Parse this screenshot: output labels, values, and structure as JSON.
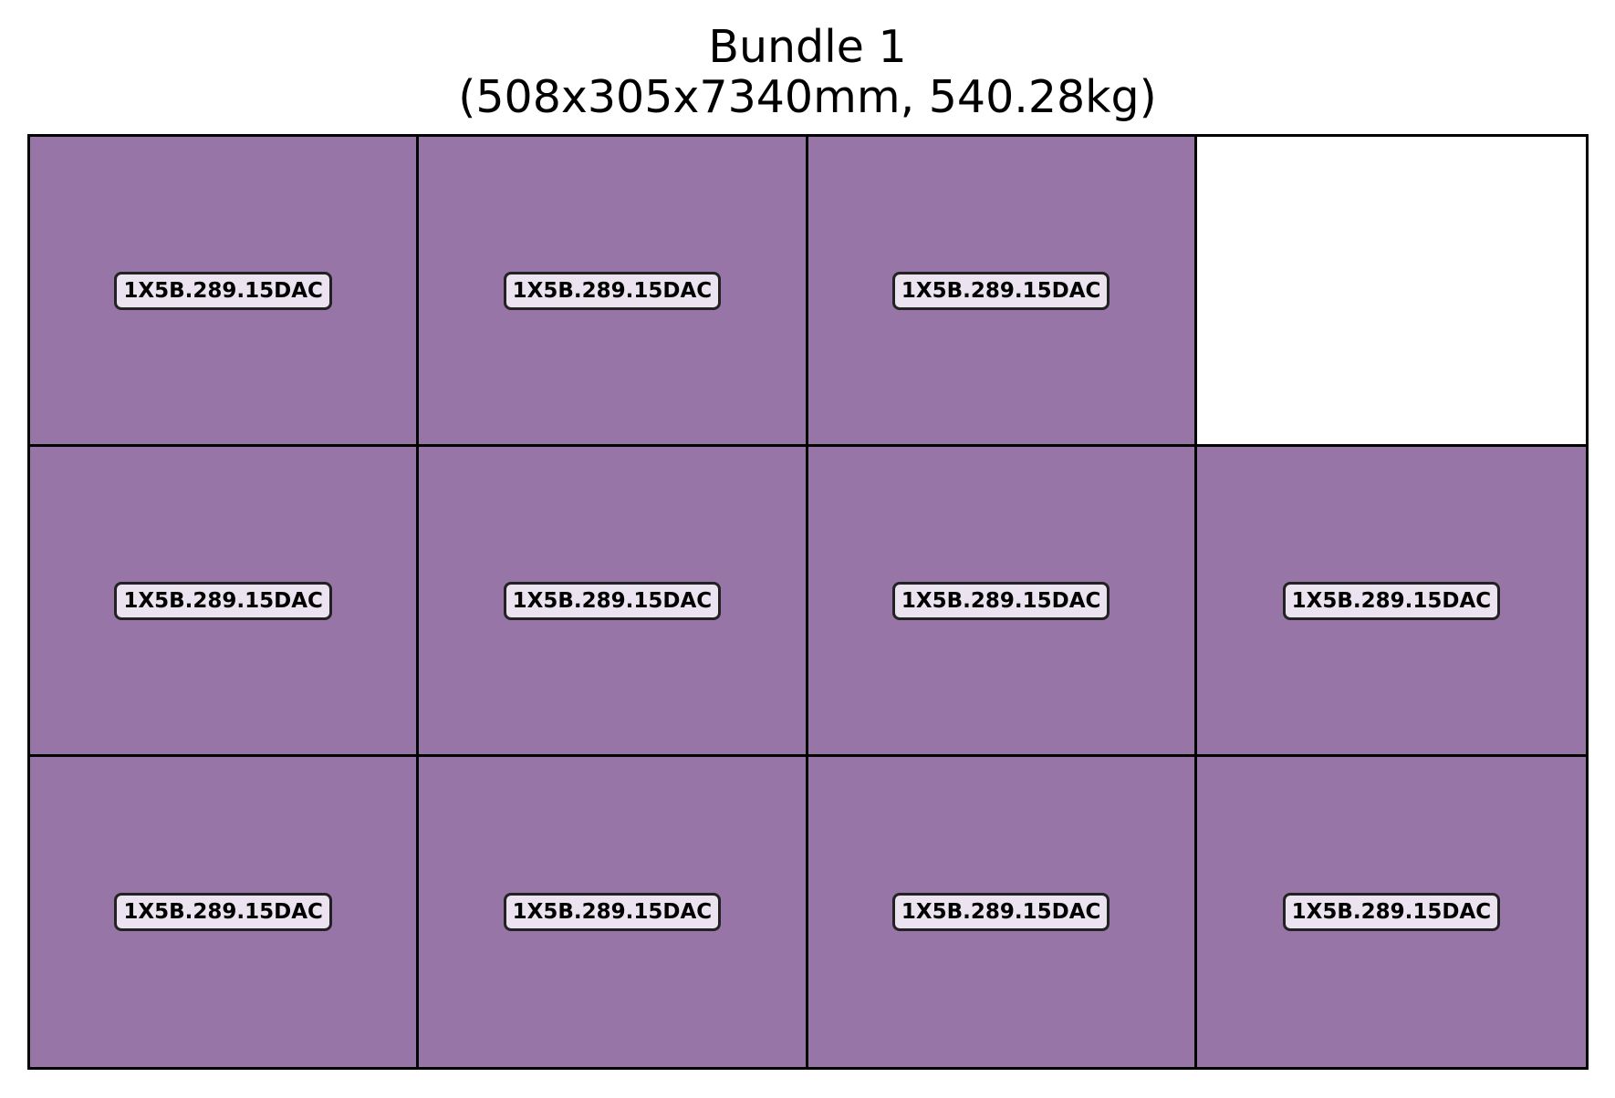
{
  "title": {
    "line1": "Bundle 1",
    "line2": "(508x305x7340mm, 540.28kg)"
  },
  "colors": {
    "filled": "#9775a6",
    "empty": "#ffffff",
    "label_bg": "#ebe3ef",
    "border": "#000000"
  },
  "grid": {
    "columns": 4,
    "rows": 3,
    "cells": [
      {
        "filled": true,
        "label": "1X5B.289.15DAC"
      },
      {
        "filled": true,
        "label": "1X5B.289.15DAC"
      },
      {
        "filled": true,
        "label": "1X5B.289.15DAC"
      },
      {
        "filled": false,
        "label": ""
      },
      {
        "filled": true,
        "label": "1X5B.289.15DAC"
      },
      {
        "filled": true,
        "label": "1X5B.289.15DAC"
      },
      {
        "filled": true,
        "label": "1X5B.289.15DAC"
      },
      {
        "filled": true,
        "label": "1X5B.289.15DAC"
      },
      {
        "filled": true,
        "label": "1X5B.289.15DAC"
      },
      {
        "filled": true,
        "label": "1X5B.289.15DAC"
      },
      {
        "filled": true,
        "label": "1X5B.289.15DAC"
      },
      {
        "filled": true,
        "label": "1X5B.289.15DAC"
      }
    ]
  }
}
